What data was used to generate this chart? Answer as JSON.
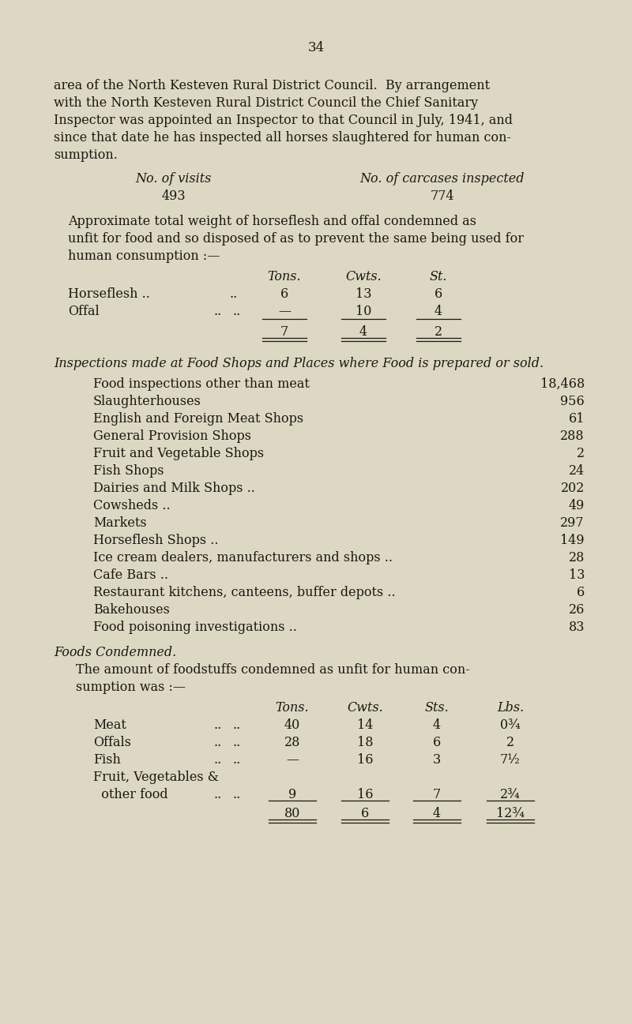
{
  "bg_color": "#ddd8c4",
  "text_color": "#1a1810",
  "page_number": "34",
  "intro_lines": [
    "area of the North Kesteven Rural District Council.  By arrangement",
    "with the North Kesteven Rural District Council the Chief Sanitary",
    "Inspector was appointed an Inspector to that Council in July, 1941, and",
    "since that date he has inspected all horses slaughtered for human con-",
    "sumption."
  ],
  "visits_label": "No. of visits",
  "visits_value": "493",
  "carcases_label": "No. of carcases inspected",
  "carcases_value": "774",
  "approx_lines": [
    "Approximate total weight of horseflesh and offal condemned as",
    "unfit for food and so disposed of as to prevent the same being used for",
    "human consumption :—"
  ],
  "horse_headers": [
    "Tons.",
    "Cwts.",
    "St."
  ],
  "horse_row1_label": "Horseflesh ..",
  "horse_row1_dots": "..",
  "horse_row1_vals": [
    "6",
    "13",
    "6"
  ],
  "horse_row2_label": "Offal",
  "horse_row2_dots": "..",
  "horse_row2_vals": [
    "—",
    "10",
    "4"
  ],
  "horse_total": [
    "7",
    "4",
    "2"
  ],
  "inspections_heading": "Inspections made at Food Shops and Places where Food is prepared or sold.",
  "inspection_items": [
    [
      "Food inspections other than meat",
      "18,468"
    ],
    [
      "Slaughterhouses",
      "956"
    ],
    [
      "English and Foreign Meat Shops",
      "61"
    ],
    [
      "General Provision Shops",
      "288"
    ],
    [
      "Fruit and Vegetable Shops",
      "2"
    ],
    [
      "Fish Shops",
      "24"
    ],
    [
      "Dairies and Milk Shops ..",
      "202"
    ],
    [
      "Cowsheds ..",
      "49"
    ],
    [
      "Markets",
      "297"
    ],
    [
      "Horseflesh Shops ..",
      "149"
    ],
    [
      "Ice cream dealers, manufacturers and shops ..",
      "28"
    ],
    [
      "Cafe Bars ..",
      "13"
    ],
    [
      "Restaurant kitchens, canteens, buffer depots ..",
      "6"
    ],
    [
      "Bakehouses",
      "26"
    ],
    [
      "Food poisoning investigations ..",
      "83"
    ]
  ],
  "foods_condemned_heading": "Foods Condemned.",
  "foods_condemned_lines": [
    "The amount of foodstuffs condemned as unfit for human con-",
    "sumption was :—"
  ],
  "foods_headers": [
    "Tons.",
    "Cwts.",
    "Sts.",
    "Lbs."
  ],
  "foods_rows": [
    [
      "Meat",
      "..",
      "40",
      "14",
      "4",
      "0¾"
    ],
    [
      "Offals",
      "..",
      "28",
      "18",
      "6",
      "2"
    ],
    [
      "Fish",
      "..",
      "—",
      "16",
      "3",
      "7½"
    ],
    [
      "Fruit, Vegetables &",
      "",
      "",
      "",
      "",
      ""
    ],
    [
      "  other food",
      "..",
      "9",
      "16",
      "7",
      "2¾"
    ]
  ],
  "foods_total": [
    "80",
    "6",
    "4",
    "12¾"
  ]
}
